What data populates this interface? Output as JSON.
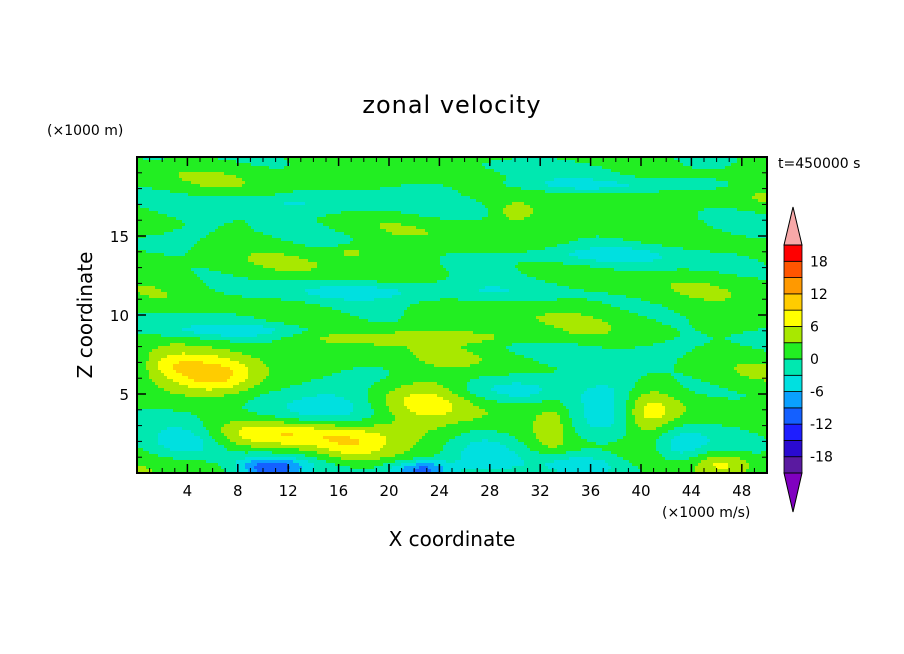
{
  "chart_data": {
    "type": "heatmap",
    "title": "zonal velocity",
    "xlabel": "X coordinate",
    "ylabel": "Z coordinate",
    "x_unit": "(×1000 m/s)",
    "y_unit": "(×1000 m)",
    "time_label": "t=450000 s",
    "xlim": [
      0,
      50
    ],
    "ylim": [
      0,
      20
    ],
    "xticks": [
      4,
      8,
      12,
      16,
      20,
      24,
      28,
      32,
      36,
      40,
      44,
      48
    ],
    "yticks": [
      5,
      10,
      15
    ],
    "colorbar": {
      "ticks": [
        18,
        12,
        6,
        0,
        -6,
        -12,
        -18
      ],
      "levels": [
        -21,
        -18,
        -15,
        -12,
        -9,
        -6,
        -3,
        0,
        3,
        6,
        9,
        12,
        15,
        18,
        21
      ],
      "colors": [
        "#8000c0",
        "#5a1aa0",
        "#2a0ad0",
        "#1e1eff",
        "#1460ff",
        "#0aa0ff",
        "#00e0e0",
        "#00e8b0",
        "#22ee22",
        "#a8e800",
        "#ffff00",
        "#ffcc00",
        "#ff9900",
        "#ff5500",
        "#ff0000",
        "#f7a8a8"
      ]
    },
    "features": [
      {
        "x": 6,
        "z": 6.2,
        "u": 9,
        "sx": 2.5,
        "sz": 0.8
      },
      {
        "x": 2.5,
        "z": 6.8,
        "u": 5,
        "sx": 1.6,
        "sz": 0.6
      },
      {
        "x": 13,
        "z": 2.5,
        "u": 7,
        "sx": 5.0,
        "sz": 0.6
      },
      {
        "x": 17,
        "z": 1.5,
        "u": 4,
        "sx": 1.8,
        "sz": 0.6
      },
      {
        "x": 23,
        "z": 4.8,
        "u": 7,
        "sx": 2.4,
        "sz": 1.4
      },
      {
        "x": 24,
        "z": 8.6,
        "u": 4,
        "sx": 7.0,
        "sz": 0.3
      },
      {
        "x": 40.5,
        "z": 3.5,
        "u": 6,
        "sx": 1.5,
        "sz": 1.2
      },
      {
        "x": 33,
        "z": 3.0,
        "u": 4,
        "sx": 1.0,
        "sz": 1.2
      },
      {
        "x": 46.5,
        "z": 0.6,
        "u": 5,
        "sx": 1.5,
        "sz": 0.5
      },
      {
        "x": 10.5,
        "z": 0.3,
        "u": -13,
        "sx": 2.0,
        "sz": 0.5
      },
      {
        "x": 22.5,
        "z": 0.2,
        "u": -11,
        "sx": 1.7,
        "sz": 0.4
      },
      {
        "x": 4,
        "z": 2.2,
        "u": -5,
        "sx": 2.0,
        "sz": 0.8
      },
      {
        "x": 16,
        "z": 4.6,
        "u": -5,
        "sx": 2.5,
        "sz": 1.0
      },
      {
        "x": 28,
        "z": 1.5,
        "u": -5,
        "sx": 2.0,
        "sz": 1.0
      },
      {
        "x": 37.5,
        "z": 4.5,
        "u": -7,
        "sx": 2.0,
        "sz": 1.2
      },
      {
        "x": 43,
        "z": 1.5,
        "u": -5,
        "sx": 1.5,
        "sz": 0.8
      },
      {
        "x": 35,
        "z": 0.6,
        "u": -4,
        "sx": 2.5,
        "sz": 0.5
      },
      {
        "x": 30,
        "z": 5.2,
        "u": -4,
        "sx": 3.0,
        "sz": 0.6
      },
      {
        "x": 20,
        "z": 11.5,
        "u": -3.5,
        "sx": 8.0,
        "sz": 0.4
      },
      {
        "x": 36,
        "z": 13.8,
        "u": -3.5,
        "sx": 5.0,
        "sz": 0.4
      },
      {
        "x": 10,
        "z": 17.0,
        "u": -3.5,
        "sx": 6.0,
        "sz": 0.4
      },
      {
        "x": 38,
        "z": 18.2,
        "u": -3.5,
        "sx": 8.0,
        "sz": 0.3
      },
      {
        "x": 8,
        "z": 9.0,
        "u": -3.5,
        "sx": 5.0,
        "sz": 0.3
      },
      {
        "x": 30,
        "z": 16.5,
        "u": 4,
        "sx": 1.0,
        "sz": 0.4
      },
      {
        "x": 17,
        "z": 14.0,
        "u": 3.5,
        "sx": 1.0,
        "sz": 0.3
      }
    ]
  }
}
